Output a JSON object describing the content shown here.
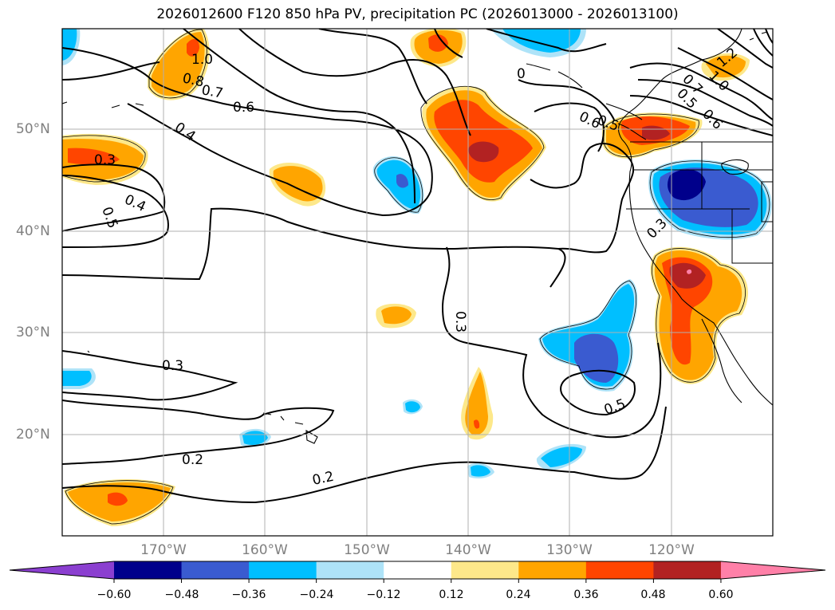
{
  "title": "2026012600 F120 850 hPa PV, precipitation PC (2026013000 - 2026013100)",
  "lat_labels": [
    "50°N",
    "40°N",
    "30°N",
    "20°N"
  ],
  "lon_labels": [
    "170°W",
    "160°W",
    "150°W",
    "140°W",
    "130°W",
    "120°W"
  ],
  "contour_labels": [
    "1.0",
    "0.8",
    "0.7",
    "0.6",
    "0.4",
    "0.3",
    "0.4",
    "0.5",
    "0.5",
    "0.3",
    "0.3",
    "0.2",
    "0.2",
    "0.5",
    "0.3",
    "0.6",
    "0",
    "1.2",
    "1.0",
    "0.7",
    "0.5",
    "0.6"
  ],
  "colorbar": {
    "ticks": [
      "−0.60",
      "−0.48",
      "−0.36",
      "−0.24",
      "−0.12",
      "0.12",
      "0.24",
      "0.36",
      "0.48",
      "0.60"
    ],
    "colors": [
      "#8b3fd0",
      "#00008b",
      "#3a5bd0",
      "#00bfff",
      "#aee3f8",
      "#ffffff",
      "#fde88a",
      "#ffa500",
      "#ff4500",
      "#b22222",
      "#ff80a8"
    ],
    "extend": "both"
  }
}
